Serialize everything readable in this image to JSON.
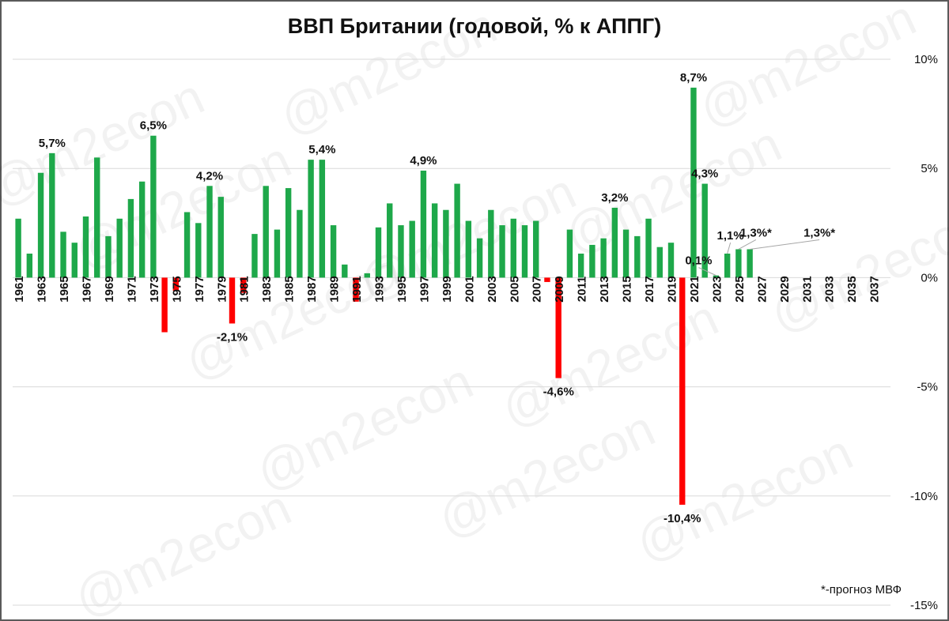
{
  "chart_data": {
    "type": "bar",
    "title": "ВВП Британии (годовой, % к АППГ)",
    "xlabel": "",
    "ylabel": "",
    "ylim": [
      -15,
      10
    ],
    "y_ticks": [
      10,
      5,
      0,
      -5,
      -10,
      -15
    ],
    "y_tick_labels": [
      "10%",
      "5%",
      "0%",
      "-5%",
      "-10%",
      "-15%"
    ],
    "y_axis_position": "right",
    "grid": true,
    "legend": "none",
    "colors": {
      "positive": "#1ea84a",
      "negative": "#ff0000",
      "grid": "#d9d9d9"
    },
    "categories": [
      1961,
      1962,
      1963,
      1964,
      1965,
      1966,
      1967,
      1968,
      1969,
      1970,
      1971,
      1972,
      1973,
      1974,
      1975,
      1976,
      1977,
      1978,
      1979,
      1980,
      1981,
      1982,
      1983,
      1984,
      1985,
      1986,
      1987,
      1988,
      1989,
      1990,
      1991,
      1992,
      1993,
      1994,
      1995,
      1996,
      1997,
      1998,
      1999,
      2000,
      2001,
      2002,
      2003,
      2004,
      2005,
      2006,
      2007,
      2008,
      2009,
      2010,
      2011,
      2012,
      2013,
      2014,
      2015,
      2016,
      2017,
      2018,
      2019,
      2020,
      2021,
      2022,
      2023,
      2024,
      2025,
      2026,
      2027,
      2028,
      2029,
      2030,
      2031,
      2032,
      2033,
      2034,
      2035,
      2036,
      2037,
      2038
    ],
    "tick_labels": [
      "1961",
      "1963",
      "1965",
      "1967",
      "1969",
      "1971",
      "1973",
      "1975",
      "1977",
      "1979",
      "1981",
      "1983",
      "1985",
      "1987",
      "1989",
      "1991",
      "1993",
      "1995",
      "1997",
      "1999",
      "2001",
      "2003",
      "2005",
      "2007",
      "2009",
      "2011",
      "2013",
      "2015",
      "2017",
      "2019",
      "2021",
      "2023",
      "2025",
      "2027",
      "2029",
      "2031",
      "2033",
      "2035",
      "2037"
    ],
    "values": [
      2.7,
      1.1,
      4.8,
      5.7,
      2.1,
      1.6,
      2.8,
      5.5,
      1.9,
      2.7,
      3.6,
      4.4,
      6.5,
      -2.5,
      -0.6,
      3.0,
      2.5,
      4.2,
      3.7,
      -2.1,
      -0.7,
      2.0,
      4.2,
      2.2,
      4.1,
      3.1,
      5.4,
      5.4,
      2.4,
      0.6,
      -1.1,
      0.2,
      2.3,
      3.4,
      2.4,
      2.6,
      4.9,
      3.4,
      3.1,
      4.3,
      2.6,
      1.8,
      3.1,
      2.4,
      2.7,
      2.4,
      2.6,
      -0.2,
      -4.6,
      2.2,
      1.1,
      1.5,
      1.8,
      3.2,
      2.2,
      1.9,
      2.7,
      1.4,
      1.6,
      -10.4,
      8.7,
      4.3,
      0.1,
      1.1,
      1.3,
      1.3,
      null,
      null,
      null,
      null,
      null,
      null,
      null,
      null,
      null,
      null,
      null,
      null
    ],
    "data_labels": [
      {
        "year": 1964,
        "text": "5,7%"
      },
      {
        "year": 1973,
        "text": "6,5%"
      },
      {
        "year": 1978,
        "text": "4,2%"
      },
      {
        "year": 1980,
        "text": "-2,1%"
      },
      {
        "year": 1988,
        "text": "5,4%"
      },
      {
        "year": 1997,
        "text": "4,9%"
      },
      {
        "year": 2009,
        "text": "-4,6%"
      },
      {
        "year": 2014,
        "text": "3,2%"
      },
      {
        "year": 2020,
        "text": "-10,4%"
      },
      {
        "year": 2021,
        "text": "8,7%"
      },
      {
        "year": 2022,
        "text": "4,3%"
      },
      {
        "year": 2023,
        "text": "0,1%"
      },
      {
        "year": 2024,
        "text": "1,1%"
      },
      {
        "year": 2025,
        "text": "1,3%*"
      },
      {
        "year": 2026,
        "text": "1,3%*"
      }
    ],
    "footnote": "*-прогноз МВФ",
    "watermark": "@m2econ"
  }
}
